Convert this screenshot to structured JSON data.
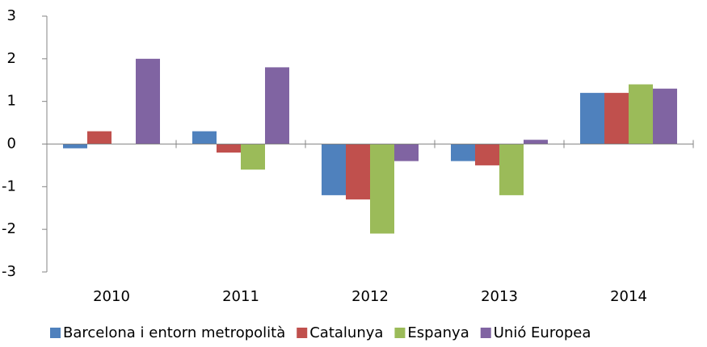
{
  "chart_data": {
    "type": "bar",
    "categories": [
      "2010",
      "2011",
      "2012",
      "2013",
      "2014"
    ],
    "series": [
      {
        "name": "Barcelona i entorn metropolità",
        "color": "#4f81bd",
        "values": [
          -0.1,
          0.3,
          -1.2,
          -0.4,
          1.2
        ]
      },
      {
        "name": "Catalunya",
        "color": "#c0504d",
        "values": [
          0.3,
          -0.2,
          -1.3,
          -0.5,
          1.2
        ]
      },
      {
        "name": "Espanya",
        "color": "#9bbb59",
        "values": [
          0,
          -0.6,
          -2.1,
          -1.2,
          1.4
        ]
      },
      {
        "name": "Unió Europea",
        "color": "#8064a2",
        "values": [
          2.0,
          1.8,
          -0.4,
          0.1,
          1.3
        ]
      }
    ],
    "ylim": [
      -3,
      3
    ],
    "yticks": [
      -3,
      -2,
      -1,
      0,
      1,
      2,
      3
    ],
    "grid": false,
    "legend": "bottom"
  }
}
